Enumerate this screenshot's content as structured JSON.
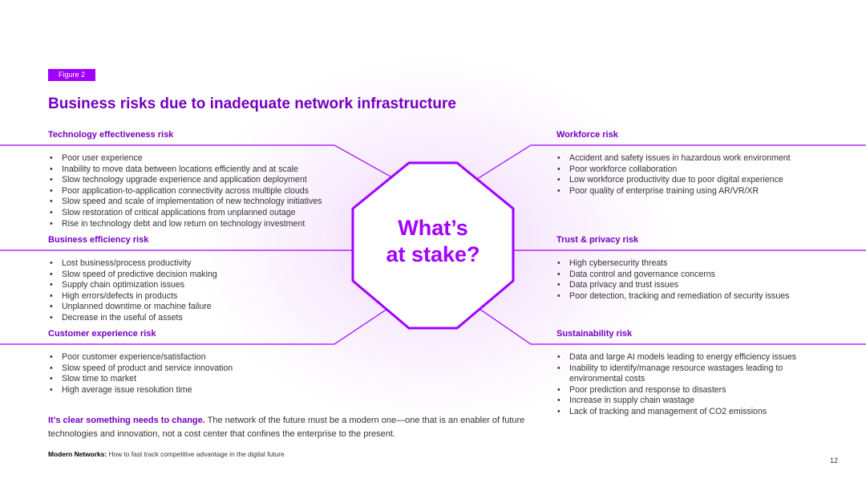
{
  "figure_tag": "Figure 2",
  "title": "Business risks due to inadequate network infrastructure",
  "center": {
    "line1": "What’s",
    "line2": "at stake?"
  },
  "risks": {
    "technology": {
      "heading": "Technology effectiveness risk",
      "items": [
        "Poor user experience",
        "Inability to move data between locations efficiently and at scale",
        "Slow technology upgrade experience and application deployment",
        "Poor application-to-application connectivity across multiple clouds",
        "Slow speed and scale of implementation of new technology initiatives",
        "Slow restoration of critical applications from unplanned outage",
        "Rise in technology debt and low return on technology investment"
      ]
    },
    "business": {
      "heading": "Business efficiency risk",
      "items": [
        "Lost business/process productivity",
        "Slow speed of predictive decision making",
        "Supply chain optimization issues",
        "High errors/defects in products",
        "Unplanned downtime or machine failure",
        "Decrease in the useful of assets"
      ]
    },
    "customer": {
      "heading": "Customer experience risk",
      "items": [
        "Poor customer experience/satisfaction",
        "Slow speed of product and service innovation",
        "Slow time to market",
        "High average issue resolution time"
      ]
    },
    "workforce": {
      "heading": "Workforce risk",
      "items": [
        "Accident and safety issues in hazardous work environment",
        "Poor workforce collaboration",
        "Low workforce productivity due to poor digital experience",
        "Poor quality of enterprise training using AR/VR/XR"
      ]
    },
    "trust": {
      "heading": "Trust & privacy risk",
      "items": [
        "High cybersecurity threats",
        "Data control and governance concerns",
        "Data privacy and trust issues",
        "Poor detection, tracking and remediation of security issues"
      ]
    },
    "sustainability": {
      "heading": "Sustainability risk",
      "items": [
        "Data and large AI models leading to energy efficiency issues",
        "Inability to identify/manage resource wastages leading to environmental costs",
        "Poor prediction and response to disasters",
        "Increase in supply chain wastage",
        "Lack of tracking and management of CO2 emissions"
      ]
    }
  },
  "closing": {
    "emphasis": "It’s clear something needs to change.",
    "text": " The network of the future must be a modern one—one that is an enabler of future technologies and innovation, not a cost center that confines the enterprise to the present."
  },
  "footer": {
    "bold": "Modern Networks:",
    "text": " How to fast track competitive advantage in the digital future"
  },
  "page_number": "12",
  "colors": {
    "accent": "#a100ff",
    "heading": "#7500c0",
    "line": "#a100ff"
  }
}
